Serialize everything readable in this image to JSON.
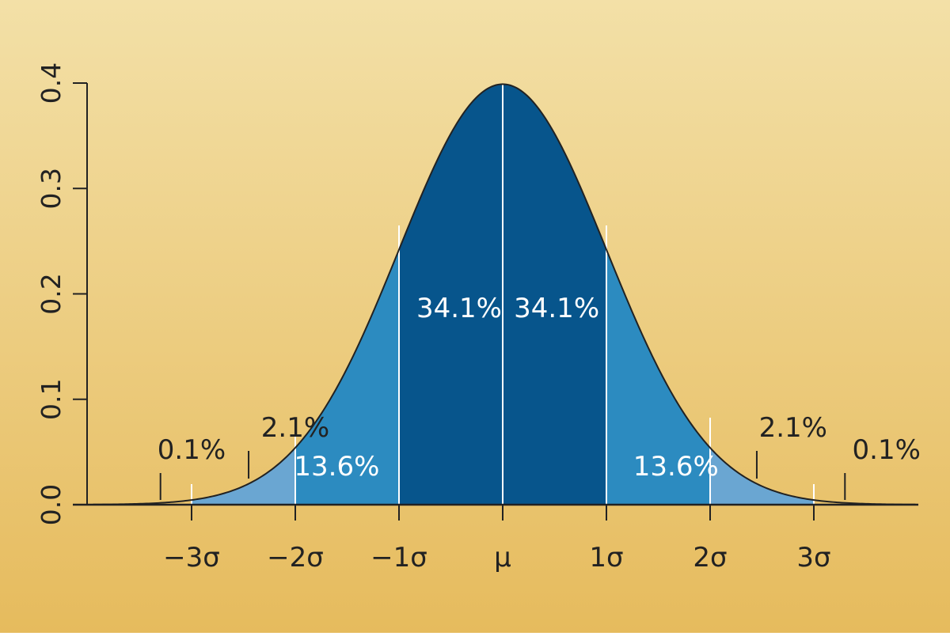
{
  "colors": {
    "background_top": "#f3e0a7",
    "background_bottom": "#e6bb5d",
    "outer_band": "#6aa6d2",
    "middle_band": "#2c8bc0",
    "inner_band": "#07558c",
    "curve": "#222222",
    "divider": "#ffffff",
    "axis": "#222222"
  },
  "chart_data": {
    "type": "area",
    "distribution": "normal",
    "mean": 0,
    "sd": 1,
    "xlim": [
      -4,
      4
    ],
    "ylim": [
      0,
      0.4
    ],
    "yticks": [
      0,
      0.1,
      0.2,
      0.3,
      0.4
    ],
    "ytick_labels": [
      "0.0",
      "0.1",
      "0.2",
      "0.3",
      "0.4"
    ],
    "xticks": [
      -3,
      -2,
      -1,
      0,
      1,
      2,
      3
    ],
    "xtick_labels": [
      "−3σ",
      "−2σ",
      "−1σ",
      "μ",
      "1σ",
      "2σ",
      "3σ"
    ],
    "bands": [
      {
        "from": -3,
        "to": -2,
        "shade": "outer"
      },
      {
        "from": -2,
        "to": -1,
        "shade": "middle"
      },
      {
        "from": -1,
        "to": 0,
        "shade": "inner"
      },
      {
        "from": 0,
        "to": 1,
        "shade": "inner"
      },
      {
        "from": 1,
        "to": 2,
        "shade": "middle"
      },
      {
        "from": 2,
        "to": 3,
        "shade": "outer"
      }
    ],
    "percent_labels": [
      {
        "text": "0.1%",
        "x": -3.3,
        "pointer": true,
        "color": "dark"
      },
      {
        "text": "2.1%",
        "x": -2.45,
        "pointer": true,
        "color": "dark"
      },
      {
        "text": "13.6%",
        "x": -1.5,
        "pointer": false,
        "color": "white"
      },
      {
        "text": "34.1%",
        "x": -0.5,
        "pointer": false,
        "color": "white"
      },
      {
        "text": "34.1%",
        "x": 0.5,
        "pointer": false,
        "color": "white"
      },
      {
        "text": "13.6%",
        "x": 1.5,
        "pointer": false,
        "color": "white"
      },
      {
        "text": "2.1%",
        "x": 2.45,
        "pointer": true,
        "color": "dark"
      },
      {
        "text": "0.1%",
        "x": 3.3,
        "pointer": true,
        "color": "dark"
      }
    ]
  }
}
